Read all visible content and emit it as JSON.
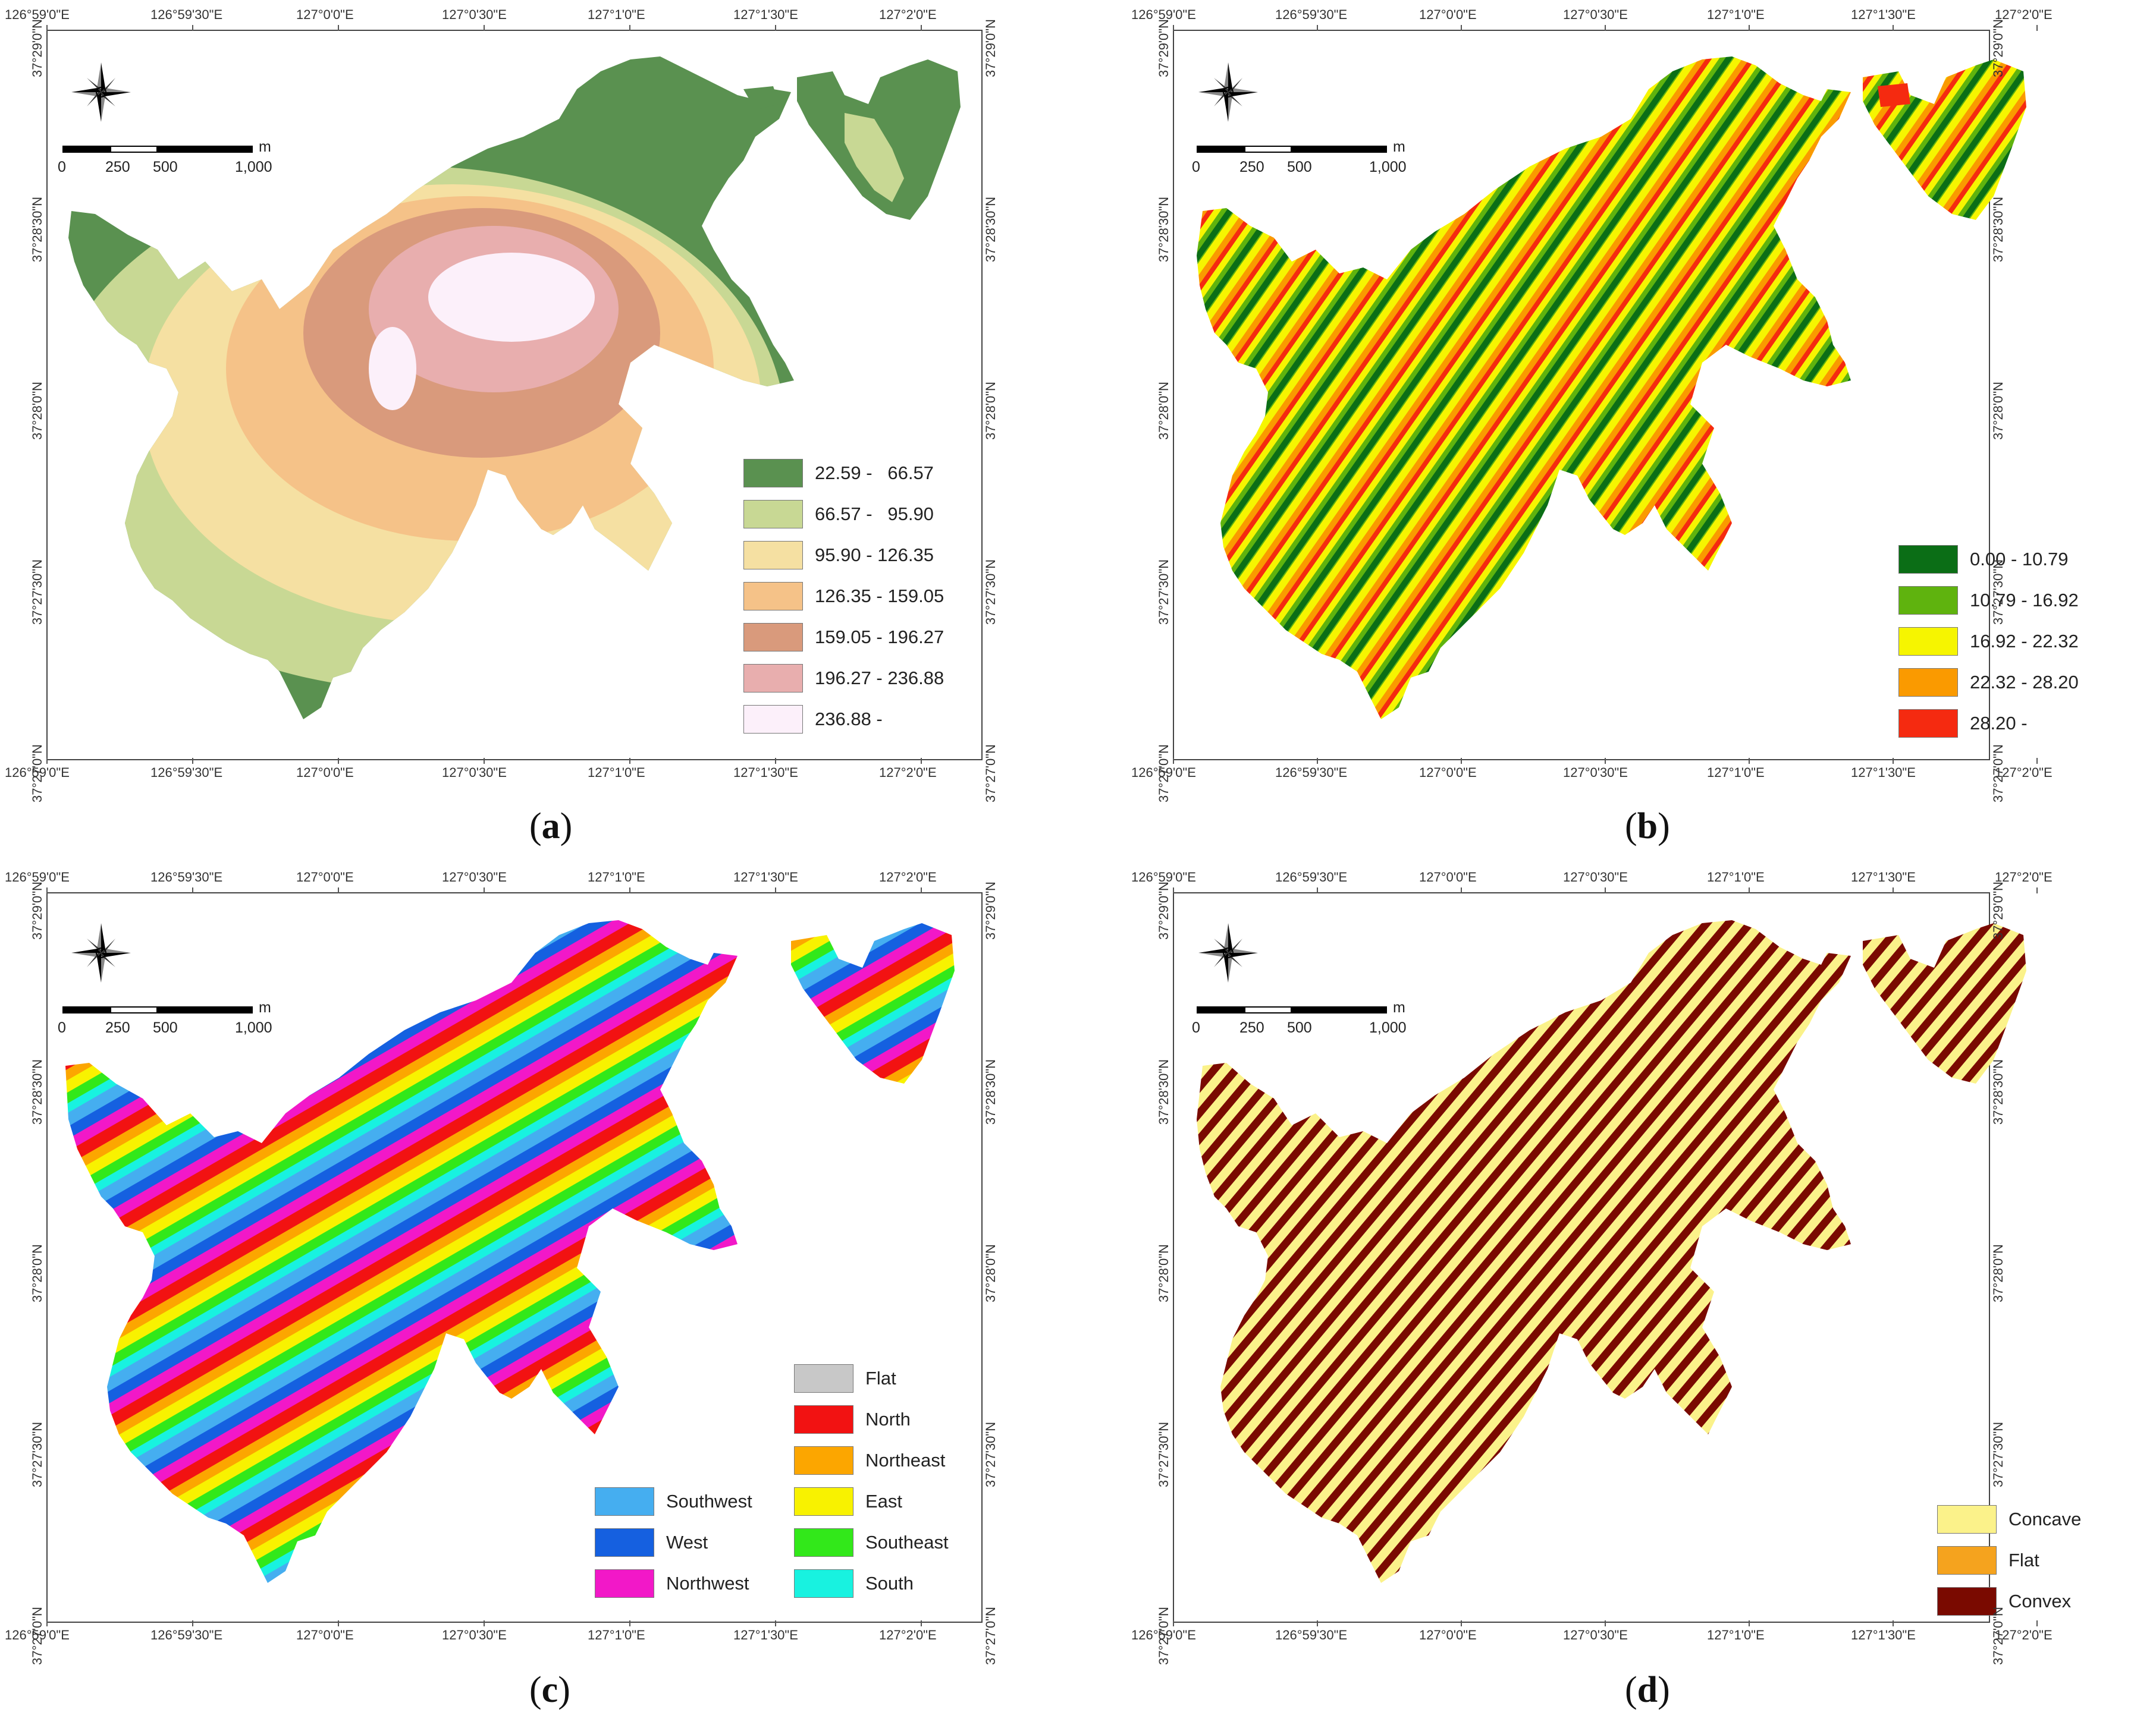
{
  "axes": {
    "lon_ticks": [
      "126°59'0\"E",
      "126°59'30\"E",
      "127°0'0\"E",
      "127°0'30\"E",
      "127°1'0\"E",
      "127°1'30\"E",
      "127°2'0\"E"
    ],
    "lat_ticks": [
      "37°29'0\"N",
      "37°28'30\"N",
      "37°28'0\"N",
      "37°27'30\"N",
      "37°27'0\"N"
    ]
  },
  "scale_bar": {
    "unit": "m",
    "labels": [
      "0",
      "250",
      "500",
      "1,000"
    ]
  },
  "compass": {
    "icon": "north-arrow-compass-rose-icon"
  },
  "panels": [
    {
      "id": "a",
      "caption_open": "(",
      "caption_letter": "a",
      "caption_close": ")",
      "legend": [
        {
          "label": "22.59 -   66.57",
          "color": "#5a9150"
        },
        {
          "label": "66.57 -   95.90",
          "color": "#c8d894"
        },
        {
          "label": "95.90 - 126.35",
          "color": "#f5e0a2"
        },
        {
          "label": "126.35 - 159.05",
          "color": "#f5c288"
        },
        {
          "label": "159.05 - 196.27",
          "color": "#d99a7c"
        },
        {
          "label": "196.27 - 236.88",
          "color": "#e8aeae"
        },
        {
          "label": "236.88 -",
          "color": "#fcf0fa"
        }
      ]
    },
    {
      "id": "b",
      "caption_open": "(",
      "caption_letter": "b",
      "caption_close": ")",
      "legend": [
        {
          "label": "0.00 - 10.79",
          "color": "#0b6e16"
        },
        {
          "label": "10.79 - 16.92",
          "color": "#5fb30e"
        },
        {
          "label": "16.92 - 22.32",
          "color": "#f6f500"
        },
        {
          "label": "22.32 - 28.20",
          "color": "#fa9a00"
        },
        {
          "label": "28.20 -",
          "color": "#f52a10"
        }
      ]
    },
    {
      "id": "c",
      "caption_open": "(",
      "caption_letter": "c",
      "caption_close": ")",
      "legend_left": [
        {
          "label": "Southwest",
          "color": "#45aef0"
        },
        {
          "label": "West",
          "color": "#1560e0"
        },
        {
          "label": "Northwest",
          "color": "#f218c8"
        }
      ],
      "legend": [
        {
          "label": "Flat",
          "color": "#c8c8c8"
        },
        {
          "label": "North",
          "color": "#f21212"
        },
        {
          "label": "Northeast",
          "color": "#fca600"
        },
        {
          "label": "East",
          "color": "#f8f200"
        },
        {
          "label": "Southeast",
          "color": "#32e81a"
        },
        {
          "label": "South",
          "color": "#18f2e0"
        }
      ]
    },
    {
      "id": "d",
      "caption_open": "(",
      "caption_letter": "d",
      "caption_close": ")",
      "legend": [
        {
          "label": "Concave",
          "color": "#fbf28a"
        },
        {
          "label": "Flat",
          "color": "#f5a31e"
        },
        {
          "label": "Convex",
          "color": "#7a0a00"
        }
      ]
    }
  ]
}
